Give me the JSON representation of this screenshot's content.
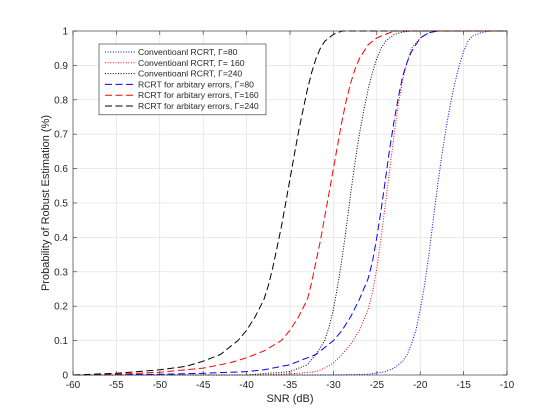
{
  "chart_data": {
    "type": "line",
    "title": "",
    "xlabel": "SNR (dB)",
    "ylabel": "Probability of Robust Estimation (%)",
    "xlim": [
      -60,
      -10
    ],
    "ylim": [
      0,
      1
    ],
    "grid": true,
    "legend_position": "top-left",
    "x_ticks": [
      -60,
      -55,
      -50,
      -45,
      -40,
      -35,
      -30,
      -25,
      -20,
      -15,
      -10
    ],
    "y_ticks": [
      0,
      0.1,
      0.2,
      0.3,
      0.4,
      0.5,
      0.6,
      0.7,
      0.8,
      0.9,
      1
    ],
    "x_tick_labels": [
      "-60",
      "-55",
      "-50",
      "-45",
      "-40",
      "-35",
      "-30",
      "-25",
      "-20",
      "-15",
      "-10"
    ],
    "y_tick_labels": [
      "0",
      "0.1",
      "0.2",
      "0.3",
      "0.4",
      "0.5",
      "0.6",
      "0.7",
      "0.8",
      "0.9",
      "1"
    ],
    "series": [
      {
        "name": "Conventioanl RCRT, Γ=80",
        "color": "#0000ff",
        "style": "dotted",
        "x": [
          -60,
          -30,
          -26,
          -24,
          -23,
          -22,
          -21.5,
          -21,
          -20.5,
          -20,
          -19.5,
          -19,
          -18.5,
          -18,
          -17.5,
          -17,
          -16.5,
          -16,
          -15.5,
          -15,
          -14.5,
          -14,
          -13,
          -12,
          -11,
          -10
        ],
        "y": [
          0,
          0,
          0.002,
          0.01,
          0.02,
          0.04,
          0.06,
          0.09,
          0.13,
          0.19,
          0.26,
          0.35,
          0.45,
          0.55,
          0.64,
          0.72,
          0.79,
          0.85,
          0.9,
          0.94,
          0.97,
          0.985,
          0.995,
          1,
          1,
          1
        ]
      },
      {
        "name": "Conventioanl RCRT, Γ= 160",
        "color": "#ff0000",
        "style": "dotted",
        "x": [
          -60,
          -38,
          -34,
          -32,
          -31,
          -30,
          -29,
          -28,
          -27,
          -26,
          -25.5,
          -25,
          -24.5,
          -24,
          -23.5,
          -23,
          -22.5,
          -22,
          -21.5,
          -21,
          -20,
          -19,
          -18,
          -10
        ],
        "y": [
          0,
          0,
          0.005,
          0.01,
          0.02,
          0.035,
          0.06,
          0.09,
          0.13,
          0.19,
          0.24,
          0.31,
          0.4,
          0.5,
          0.6,
          0.7,
          0.79,
          0.86,
          0.91,
          0.95,
          0.98,
          0.995,
          1,
          1
        ]
      },
      {
        "name": "Conventioanl RCRT, Γ=240",
        "color": "#000000",
        "style": "dotted",
        "x": [
          -60,
          -40,
          -35,
          -33,
          -32,
          -31,
          -30.5,
          -30,
          -29.5,
          -29,
          -28.5,
          -28,
          -27.5,
          -27,
          -26.5,
          -26,
          -25.5,
          -25,
          -24.5,
          -24,
          -23,
          -22,
          -21,
          -20,
          -10
        ],
        "y": [
          0,
          0,
          0.01,
          0.03,
          0.06,
          0.1,
          0.14,
          0.19,
          0.26,
          0.34,
          0.43,
          0.53,
          0.62,
          0.7,
          0.77,
          0.83,
          0.88,
          0.92,
          0.95,
          0.97,
          0.99,
          0.997,
          1,
          1,
          1
        ]
      },
      {
        "name": "RCRT for arbitary errors, Γ=80",
        "color": "#0000ff",
        "style": "dashed",
        "x": [
          -60,
          -50,
          -45,
          -40,
          -38,
          -36,
          -35,
          -34,
          -33,
          -32,
          -31,
          -30,
          -29,
          -28,
          -27,
          -26,
          -25.5,
          -25,
          -24.5,
          -24,
          -23.5,
          -23,
          -22.5,
          -22,
          -21.5,
          -21,
          -20,
          -19,
          -18,
          -10
        ],
        "y": [
          0,
          0.002,
          0.005,
          0.01,
          0.015,
          0.025,
          0.03,
          0.04,
          0.05,
          0.06,
          0.08,
          0.1,
          0.13,
          0.17,
          0.22,
          0.28,
          0.33,
          0.4,
          0.48,
          0.57,
          0.66,
          0.74,
          0.81,
          0.87,
          0.91,
          0.94,
          0.98,
          0.995,
          1,
          1
        ]
      },
      {
        "name": "RCRT for arbitary errors, Γ=160",
        "color": "#ff0000",
        "style": "dashed",
        "x": [
          -60,
          -55,
          -50,
          -45,
          -42,
          -40,
          -38,
          -37,
          -36,
          -35,
          -34,
          -33,
          -32.5,
          -32,
          -31.5,
          -31,
          -30.5,
          -30,
          -29.5,
          -29,
          -28.5,
          -28,
          -27.5,
          -27,
          -26,
          -25,
          -24,
          -23,
          -22,
          -10
        ],
        "y": [
          0,
          0.002,
          0.008,
          0.02,
          0.035,
          0.05,
          0.07,
          0.085,
          0.1,
          0.13,
          0.17,
          0.22,
          0.27,
          0.33,
          0.39,
          0.46,
          0.53,
          0.6,
          0.67,
          0.74,
          0.8,
          0.85,
          0.89,
          0.92,
          0.96,
          0.98,
          0.99,
          1,
          1,
          1
        ]
      },
      {
        "name": "RCRT for arbitary errors, Γ=240",
        "color": "#000000",
        "style": "dashed",
        "x": [
          -60,
          -55,
          -50,
          -47,
          -45,
          -43,
          -42,
          -41,
          -40,
          -39,
          -38,
          -37.5,
          -37,
          -36.5,
          -36,
          -35.5,
          -35,
          -34.5,
          -34,
          -33.5,
          -33,
          -32.5,
          -32,
          -31.5,
          -31,
          -30,
          -29,
          -28,
          -27,
          -10
        ],
        "y": [
          0,
          0.005,
          0.015,
          0.025,
          0.04,
          0.06,
          0.08,
          0.1,
          0.13,
          0.17,
          0.22,
          0.26,
          0.31,
          0.37,
          0.43,
          0.5,
          0.57,
          0.64,
          0.71,
          0.77,
          0.83,
          0.88,
          0.92,
          0.95,
          0.97,
          0.99,
          1,
          1,
          1,
          1
        ]
      }
    ]
  }
}
